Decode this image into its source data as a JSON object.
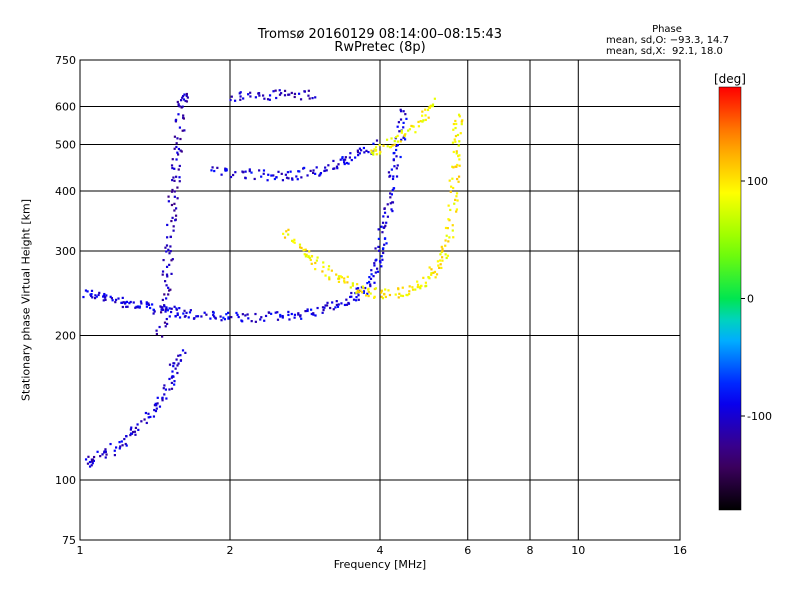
{
  "header": {
    "title_line1": "Tromsø 20160129 08:14:00–08:15:43",
    "title_line2": "RwPretec (8p)"
  },
  "phase_box": {
    "title": "Phase",
    "o_line": "mean, sd,O: −93.3, 14.7",
    "x_line": "mean, sd,X:  92.1, 18.0"
  },
  "chart_data": {
    "type": "scatter",
    "title": "Tromsø 20160129 08:14:00–08:15:43",
    "subtitle": "RwPretec (8p)",
    "xlabel": "Frequency [MHz]",
    "ylabel": "Stationary phase Virtual Height [km]",
    "x_scale": "log",
    "y_scale": "log",
    "xlim": [
      1,
      16
    ],
    "ylim": [
      75,
      750
    ],
    "x_ticks": [
      1,
      2,
      4,
      6,
      8,
      10,
      16
    ],
    "x_gridlines": [
      2,
      4,
      6,
      8,
      10
    ],
    "y_ticks": [
      75,
      100,
      200,
      300,
      400,
      500,
      600,
      750
    ],
    "grid": true,
    "colorbar": {
      "label": "[deg]",
      "range": [
        -180,
        180
      ],
      "ticks": [
        100,
        0,
        -100
      ]
    },
    "traces": [
      {
        "polarity": "O",
        "phase_deg": -95,
        "points": [
          [
            1.02,
            246
          ],
          [
            1.1,
            240
          ],
          [
            1.2,
            236
          ],
          [
            1.3,
            232
          ],
          [
            1.4,
            228
          ],
          [
            1.5,
            225
          ],
          [
            1.6,
            222
          ],
          [
            1.8,
            220
          ],
          [
            2.0,
            218
          ],
          [
            2.3,
            218
          ],
          [
            2.6,
            220
          ],
          [
            2.9,
            224
          ],
          [
            3.2,
            230
          ],
          [
            3.5,
            238
          ],
          [
            3.7,
            250
          ],
          [
            3.9,
            270
          ],
          [
            4.0,
            300
          ],
          [
            4.1,
            340
          ],
          [
            4.2,
            390
          ],
          [
            4.3,
            450
          ],
          [
            4.4,
            520
          ],
          [
            4.5,
            600
          ]
        ]
      },
      {
        "polarity": "O",
        "phase_deg": -110,
        "points": [
          [
            1.45,
            200
          ],
          [
            1.48,
            240
          ],
          [
            1.5,
            280
          ],
          [
            1.52,
            330
          ],
          [
            1.54,
            390
          ],
          [
            1.56,
            450
          ],
          [
            1.58,
            520
          ],
          [
            1.6,
            600
          ],
          [
            1.62,
            640
          ]
        ]
      },
      {
        "polarity": "O",
        "phase_deg": -100,
        "points": [
          [
            1.03,
            108
          ],
          [
            1.1,
            112
          ],
          [
            1.2,
            118
          ],
          [
            1.3,
            128
          ],
          [
            1.4,
            140
          ],
          [
            1.5,
            155
          ],
          [
            1.55,
            170
          ],
          [
            1.6,
            185
          ]
        ]
      },
      {
        "polarity": "O",
        "phase_deg": -95,
        "points": [
          [
            1.85,
            440
          ],
          [
            2.1,
            435
          ],
          [
            2.4,
            430
          ],
          [
            2.7,
            432
          ],
          [
            3.0,
            440
          ],
          [
            3.3,
            455
          ],
          [
            3.6,
            475
          ],
          [
            3.9,
            500
          ]
        ]
      },
      {
        "polarity": "O",
        "phase_deg": -105,
        "points": [
          [
            2.0,
            630
          ],
          [
            2.3,
            632
          ],
          [
            2.6,
            635
          ],
          [
            3.0,
            638
          ]
        ]
      },
      {
        "polarity": "X",
        "phase_deg": 95,
        "points": [
          [
            2.6,
            330
          ],
          [
            2.8,
            300
          ],
          [
            3.0,
            280
          ],
          [
            3.3,
            265
          ],
          [
            3.6,
            250
          ],
          [
            3.9,
            245
          ],
          [
            4.3,
            245
          ],
          [
            4.7,
            250
          ],
          [
            5.0,
            262
          ],
          [
            5.3,
            285
          ],
          [
            5.5,
            320
          ],
          [
            5.6,
            380
          ],
          [
            5.65,
            450
          ],
          [
            5.7,
            520
          ],
          [
            5.75,
            580
          ]
        ]
      },
      {
        "polarity": "X",
        "phase_deg": 90,
        "points": [
          [
            3.8,
            480
          ],
          [
            4.1,
            500
          ],
          [
            4.5,
            530
          ],
          [
            4.9,
            570
          ],
          [
            5.2,
            620
          ]
        ]
      }
    ]
  }
}
